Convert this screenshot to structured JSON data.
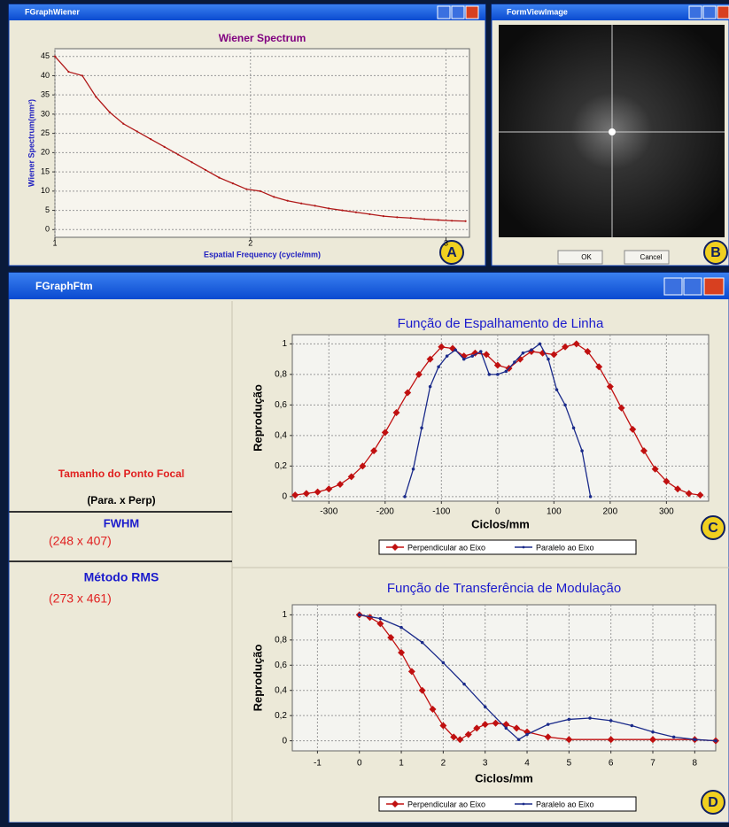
{
  "windows": {
    "wiener": "FGraphWiener",
    "image": "FormViewImage",
    "ftm": "FGraphFtm"
  },
  "buttons": {
    "ok": "OK",
    "cancel": "Cancel"
  },
  "panel": {
    "heading": "Tamanho do Ponto Focal",
    "subheading": "(Para. x Perp)",
    "fwhm_label": "FWHM",
    "fwhm_value": "(248 x 407)",
    "rms_label": "Método RMS",
    "rms_value": "(273 x 461)"
  },
  "badges": [
    "A",
    "B",
    "C",
    "D"
  ],
  "chart_data": [
    {
      "type": "line",
      "title": "Wiener Spectrum",
      "x_label": "Espatial Frequency (cycle/mm)",
      "y_label": "Wiener Spectrum(mm²)",
      "xlim": [
        1,
        3.12
      ],
      "ylim": [
        -2,
        47
      ],
      "xticks": [
        1,
        2,
        3
      ],
      "yticks": [
        0,
        5,
        10,
        15,
        20,
        25,
        30,
        35,
        40,
        45
      ],
      "grid": true,
      "series": [
        {
          "color": "#b01818",
          "marker": "circle",
          "x": [
            1,
            1.07,
            1.14,
            1.21,
            1.28,
            1.35,
            1.42,
            1.49,
            1.56,
            1.63,
            1.7,
            1.77,
            1.84,
            1.91,
            1.98,
            2.05,
            2.12,
            2.19,
            2.26,
            2.33,
            2.4,
            2.47,
            2.54,
            2.61,
            2.68,
            2.75,
            2.82,
            2.89,
            2.96,
            3.03,
            3.1
          ],
          "values": [
            45,
            41,
            40,
            34.5,
            30.5,
            27.5,
            25.5,
            23.5,
            21.5,
            19.5,
            17.5,
            15.5,
            13.5,
            12,
            10.5,
            10,
            8.5,
            7.5,
            6.8,
            6.2,
            5.5,
            5,
            4.5,
            4,
            3.5,
            3.2,
            3,
            2.7,
            2.5,
            2.3,
            2.2
          ]
        }
      ]
    },
    {
      "type": "line",
      "title": "Função de Espalhamento de Linha",
      "x_label": "Ciclos/mm",
      "y_label": "Reprodução",
      "xlim": [
        -365,
        375
      ],
      "ylim": [
        -0.03,
        1.06
      ],
      "xticks": [
        -300,
        -200,
        -100,
        0,
        100,
        200,
        300
      ],
      "yticks": [
        0,
        {
          "value": 0.2,
          "label": "0,2"
        },
        {
          "value": 0.4,
          "label": "0,4"
        },
        {
          "value": 0.6,
          "label": "0,6"
        },
        {
          "value": 0.8,
          "label": "0,8"
        },
        1
      ],
      "grid": true,
      "legend": true,
      "series": [
        {
          "name": "Perpendicular ao Eixo",
          "color": "#c01010",
          "marker": "diamond",
          "x": [
            -360,
            -340,
            -320,
            -300,
            -280,
            -260,
            -240,
            -220,
            -200,
            -180,
            -160,
            -140,
            -120,
            -100,
            -80,
            -60,
            -40,
            -20,
            0,
            20,
            40,
            60,
            80,
            100,
            120,
            140,
            160,
            180,
            200,
            220,
            240,
            260,
            280,
            300,
            320,
            340,
            360
          ],
          "values": [
            0.01,
            0.02,
            0.03,
            0.05,
            0.08,
            0.13,
            0.2,
            0.3,
            0.42,
            0.55,
            0.68,
            0.8,
            0.9,
            0.98,
            0.97,
            0.92,
            0.94,
            0.93,
            0.86,
            0.84,
            0.9,
            0.95,
            0.94,
            0.93,
            0.98,
            1,
            0.95,
            0.85,
            0.72,
            0.58,
            0.44,
            0.3,
            0.18,
            0.1,
            0.05,
            0.02,
            0.01
          ]
        },
        {
          "name": "Paralelo ao Eixo",
          "color": "#1a2a8a",
          "marker": "circle",
          "x": [
            -165,
            -150,
            -135,
            -120,
            -105,
            -90,
            -75,
            -60,
            -45,
            -30,
            -15,
            0,
            15,
            30,
            45,
            60,
            75,
            90,
            105,
            120,
            135,
            150,
            165
          ],
          "values": [
            0,
            0.18,
            0.45,
            0.72,
            0.85,
            0.92,
            0.96,
            0.9,
            0.92,
            0.95,
            0.8,
            0.8,
            0.82,
            0.88,
            0.94,
            0.96,
            1,
            0.9,
            0.7,
            0.6,
            0.45,
            0.3,
            0
          ]
        }
      ]
    },
    {
      "type": "line",
      "title": "Função de Transferência de Modulação",
      "x_label": "Ciclos/mm",
      "y_label": "Reprodução",
      "xlim": [
        -1.6,
        8.5
      ],
      "ylim": [
        -0.08,
        1.08
      ],
      "xticks": [
        -1,
        0,
        1,
        2,
        3,
        4,
        5,
        6,
        7,
        8
      ],
      "yticks": [
        0,
        {
          "value": 0.2,
          "label": "0,2"
        },
        {
          "value": 0.4,
          "label": "0,4"
        },
        {
          "value": 0.6,
          "label": "0,6"
        },
        {
          "value": 0.8,
          "label": "0,8"
        },
        1
      ],
      "grid": true,
      "legend": true,
      "series": [
        {
          "name": "Perpendicular ao Eixo",
          "color": "#c01010",
          "marker": "diamond",
          "x": [
            0,
            0.25,
            0.5,
            0.75,
            1,
            1.25,
            1.5,
            1.75,
            2,
            2.25,
            2.4,
            2.6,
            2.8,
            3,
            3.25,
            3.5,
            3.75,
            4,
            4.5,
            5,
            6,
            7,
            8,
            8.5
          ],
          "values": [
            1,
            0.98,
            0.93,
            0.82,
            0.7,
            0.55,
            0.4,
            0.25,
            0.12,
            0.03,
            0.01,
            0.05,
            0.1,
            0.13,
            0.14,
            0.13,
            0.1,
            0.07,
            0.03,
            0.01,
            0.01,
            0.01,
            0.01,
            0
          ]
        },
        {
          "name": "Paralelo ao Eixo",
          "color": "#1a2a8a",
          "marker": "circle",
          "x": [
            0,
            0.5,
            1,
            1.5,
            2,
            2.5,
            3,
            3.5,
            3.8,
            4,
            4.5,
            5,
            5.5,
            6,
            6.5,
            7,
            7.5,
            8,
            8.5
          ],
          "values": [
            1,
            0.97,
            0.9,
            0.78,
            0.62,
            0.45,
            0.27,
            0.1,
            0.01,
            0.05,
            0.13,
            0.17,
            0.18,
            0.16,
            0.12,
            0.07,
            0.03,
            0.01,
            0
          ]
        }
      ]
    }
  ]
}
